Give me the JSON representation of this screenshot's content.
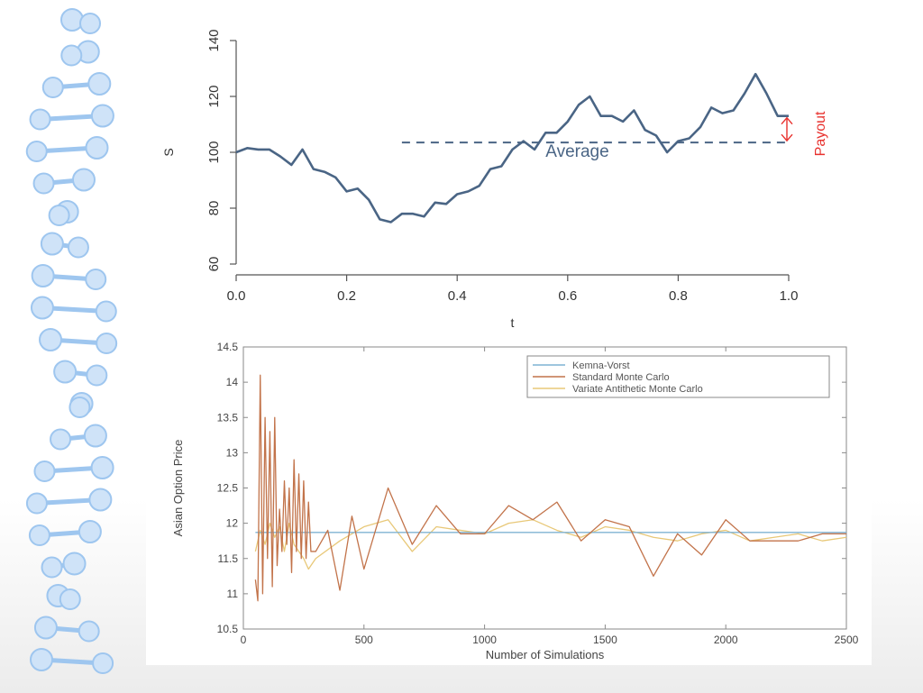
{
  "colors": {
    "path": "#4a6585",
    "payout": "#e8312e",
    "kemna_vorst": "#7fb3d3",
    "standard_mc": "#c2734a",
    "antithetic_mc": "#e8c878",
    "dna": "#9ec6ef"
  },
  "chart_data": [
    {
      "type": "line",
      "xlabel": "t",
      "ylabel": "S",
      "xlim": [
        0,
        1
      ],
      "ylim": [
        60,
        140
      ],
      "xticks": [
        "0.0",
        "0.2",
        "0.4",
        "0.6",
        "0.8",
        "1.0"
      ],
      "yticks": [
        "60",
        "80",
        "100",
        "120",
        "140"
      ],
      "series": [
        {
          "x": [
            0,
            0.02,
            0.04,
            0.06,
            0.08,
            0.1,
            0.12,
            0.14,
            0.16,
            0.18,
            0.2,
            0.22,
            0.24,
            0.26,
            0.28,
            0.3,
            0.32,
            0.34,
            0.36,
            0.38,
            0.4,
            0.42,
            0.44,
            0.46,
            0.48,
            0.5,
            0.52,
            0.54,
            0.56,
            0.58,
            0.6,
            0.62,
            0.64,
            0.66,
            0.68,
            0.7,
            0.72,
            0.74,
            0.76,
            0.78,
            0.8,
            0.82,
            0.84,
            0.86,
            0.88,
            0.9,
            0.92,
            0.94,
            0.96,
            0.98,
            1.0
          ],
          "y": [
            100,
            101.5,
            101,
            101,
            98.5,
            95.5,
            101,
            94,
            93,
            91,
            86,
            87,
            83,
            76,
            75,
            78,
            78,
            77,
            82,
            81.5,
            85,
            86,
            88,
            94,
            95,
            101,
            104,
            101,
            107,
            107,
            111,
            117,
            120,
            113,
            113,
            111,
            115,
            108,
            106,
            100,
            104,
            105,
            109,
            116,
            114,
            115,
            121,
            128,
            121,
            113,
            113
          ]
        }
      ],
      "average": {
        "label": "Average",
        "value": 103.5,
        "x_start": 0.3,
        "x_end": 1.0
      },
      "payout": {
        "label": "Payout",
        "from": 103.5,
        "to": 113
      }
    },
    {
      "type": "line",
      "xlabel": "Number of Simulations",
      "ylabel": "Asian Option Price",
      "xlim": [
        0,
        2500
      ],
      "ylim": [
        10.5,
        14.5
      ],
      "xticks": [
        "0",
        "500",
        "1000",
        "1500",
        "2000",
        "2500"
      ],
      "yticks": [
        "10.5",
        "11",
        "11.5",
        "12",
        "12.5",
        "13",
        "13.5",
        "14",
        "14.5"
      ],
      "legend_position": "top-right",
      "series": [
        {
          "name": "Kemna-Vorst",
          "x": [
            50,
            2500
          ],
          "y": [
            11.87,
            11.87
          ]
        },
        {
          "name": "Standard Monte Carlo",
          "x": [
            50,
            60,
            70,
            80,
            90,
            100,
            110,
            120,
            130,
            140,
            150,
            160,
            170,
            180,
            190,
            200,
            210,
            220,
            230,
            240,
            250,
            260,
            270,
            280,
            300,
            350,
            400,
            450,
            500,
            600,
            700,
            800,
            900,
            1000,
            1100,
            1200,
            1300,
            1400,
            1500,
            1600,
            1700,
            1800,
            1900,
            2000,
            2100,
            2200,
            2300,
            2400,
            2500
          ],
          "y": [
            11.2,
            10.9,
            14.1,
            11.0,
            13.5,
            11.5,
            13.3,
            11.1,
            13.5,
            11.4,
            12.2,
            11.6,
            12.6,
            11.7,
            12.5,
            11.3,
            12.9,
            11.6,
            12.7,
            11.5,
            12.6,
            11.5,
            12.3,
            11.6,
            11.6,
            11.9,
            11.05,
            12.1,
            11.35,
            12.5,
            11.7,
            12.25,
            11.85,
            11.85,
            12.25,
            12.05,
            12.3,
            11.75,
            12.05,
            11.95,
            11.25,
            11.85,
            11.55,
            12.05,
            11.75,
            11.75,
            11.75,
            11.85,
            11.85
          ]
        },
        {
          "name": "Variate Antithetic Monte Carlo",
          "x": [
            50,
            70,
            90,
            110,
            130,
            150,
            170,
            190,
            210,
            230,
            250,
            270,
            300,
            400,
            500,
            600,
            700,
            800,
            900,
            1000,
            1100,
            1200,
            1300,
            1400,
            1500,
            1600,
            1700,
            1800,
            1900,
            2000,
            2100,
            2200,
            2300,
            2400,
            2500
          ],
          "y": [
            11.6,
            11.9,
            11.7,
            12.0,
            11.8,
            11.95,
            11.6,
            12.0,
            11.7,
            11.6,
            11.5,
            11.35,
            11.5,
            11.75,
            11.95,
            12.05,
            11.6,
            11.95,
            11.9,
            11.85,
            12.0,
            12.05,
            11.9,
            11.8,
            11.95,
            11.9,
            11.8,
            11.75,
            11.85,
            11.9,
            11.75,
            11.8,
            11.85,
            11.75,
            11.8
          ]
        }
      ]
    }
  ]
}
